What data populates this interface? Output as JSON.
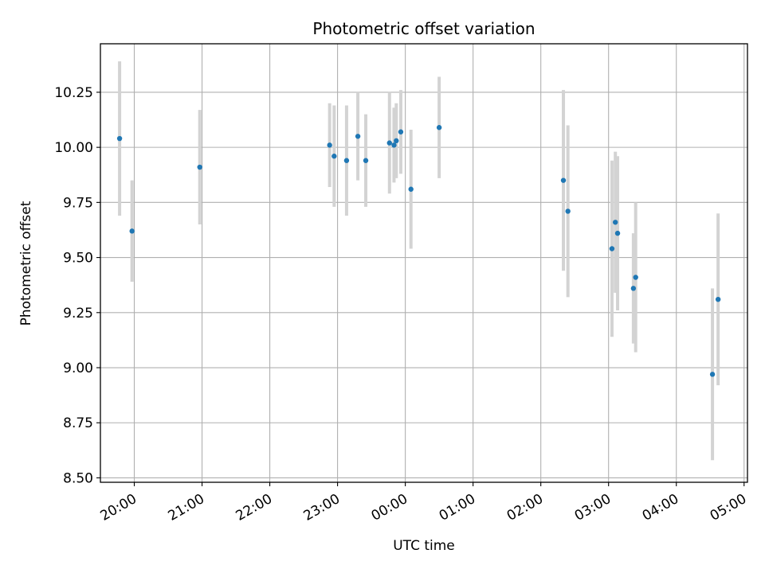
{
  "chart_data": {
    "type": "scatter",
    "title": "Photometric offset variation",
    "xlabel": "UTC time",
    "ylabel": "Photometric offset",
    "grid": true,
    "x_tick_labels": [
      "20:00",
      "21:00",
      "22:00",
      "23:00",
      "00:00",
      "01:00",
      "02:00",
      "03:00",
      "04:00",
      "05:00"
    ],
    "y_tick_labels": [
      "8.50",
      "8.75",
      "9.00",
      "9.25",
      "9.50",
      "9.75",
      "10.00",
      "10.25"
    ],
    "xlim": [
      "19:30",
      "05:03"
    ],
    "ylim": [
      8.48,
      10.47
    ],
    "colors": {
      "point": "#1f77b4",
      "errorbar": "#d3d3d3",
      "grid": "#b0b0b0"
    },
    "series": [
      {
        "points": [
          {
            "x": "19:47",
            "y": 10.04,
            "err": 0.35
          },
          {
            "x": "19:58",
            "y": 9.62,
            "err": 0.23
          },
          {
            "x": "20:58",
            "y": 9.91,
            "err": 0.26
          },
          {
            "x": "22:53",
            "y": 10.01,
            "err": 0.19
          },
          {
            "x": "22:57",
            "y": 9.96,
            "err": 0.23
          },
          {
            "x": "23:08",
            "y": 9.94,
            "err": 0.25
          },
          {
            "x": "23:18",
            "y": 10.05,
            "err": 0.2
          },
          {
            "x": "23:25",
            "y": 9.94,
            "err": 0.21
          },
          {
            "x": "23:46",
            "y": 10.02,
            "err": 0.23
          },
          {
            "x": "23:50",
            "y": 10.01,
            "err": 0.17
          },
          {
            "x": "23:52",
            "y": 10.03,
            "err": 0.17
          },
          {
            "x": "23:56",
            "y": 10.07,
            "err": 0.19
          },
          {
            "x": "00:05",
            "y": 9.81,
            "err": 0.27
          },
          {
            "x": "00:30",
            "y": 10.09,
            "err": 0.23
          },
          {
            "x": "02:20",
            "y": 9.85,
            "err": 0.41
          },
          {
            "x": "02:24",
            "y": 9.71,
            "err": 0.39
          },
          {
            "x": "03:03",
            "y": 9.54,
            "err": 0.4
          },
          {
            "x": "03:06",
            "y": 9.66,
            "err": 0.32
          },
          {
            "x": "03:08",
            "y": 9.61,
            "err": 0.35
          },
          {
            "x": "03:22",
            "y": 9.36,
            "err": 0.25
          },
          {
            "x": "03:24",
            "y": 9.41,
            "err": 0.34
          },
          {
            "x": "04:32",
            "y": 8.97,
            "err": 0.39
          },
          {
            "x": "04:37",
            "y": 9.31,
            "err": 0.39
          }
        ]
      }
    ]
  }
}
